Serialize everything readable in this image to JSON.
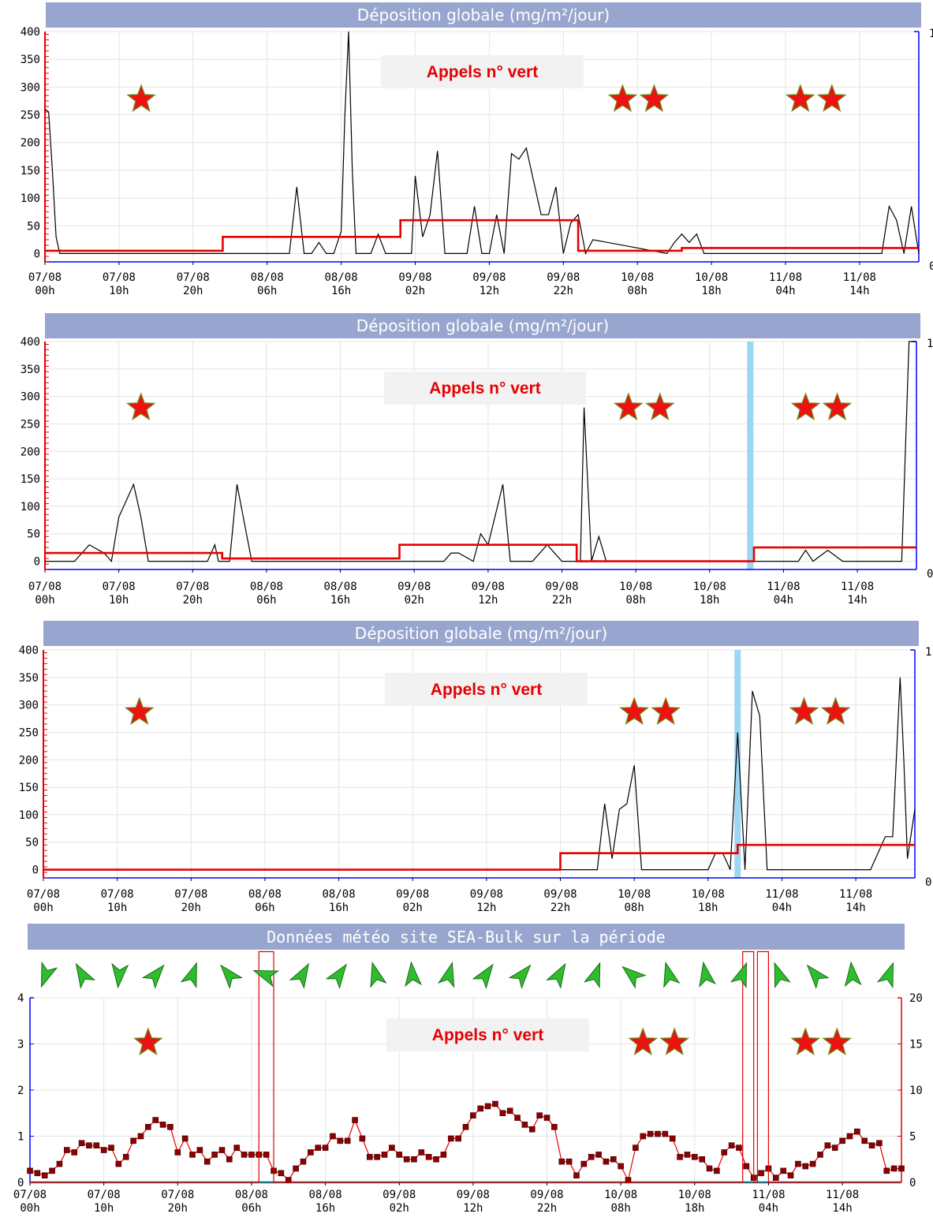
{
  "colors": {
    "header": "#98a6cf",
    "deposition_line": "#000000",
    "average_line": "#e60000",
    "highlight_band": "#9ad7f2",
    "left_axis": "#e60000",
    "right_axis": "#0000ff",
    "wind_arrow": "#2dbd2d",
    "star": "#ee1111"
  },
  "annotation": "Appels n° vert",
  "x_ticks": [
    {
      "date": "07/08",
      "hour": "00h"
    },
    {
      "date": "07/08",
      "hour": "10h"
    },
    {
      "date": "07/08",
      "hour": "20h"
    },
    {
      "date": "08/08",
      "hour": "06h"
    },
    {
      "date": "08/08",
      "hour": "16h"
    },
    {
      "date": "09/08",
      "hour": "02h"
    },
    {
      "date": "09/08",
      "hour": "12h"
    },
    {
      "date": "09/08",
      "hour": "22h"
    },
    {
      "date": "10/08",
      "hour": "08h"
    },
    {
      "date": "10/08",
      "hour": "18h"
    },
    {
      "date": "11/08",
      "hour": "04h"
    },
    {
      "date": "11/08",
      "hour": "14h"
    }
  ],
  "chart_data": [
    {
      "type": "line",
      "title": "Déposition globale (mg/m²/jour)",
      "x_unit": "hours since 07/08 00h",
      "xlim": [
        0,
        118
      ],
      "ylim": [
        -15,
        400
      ],
      "y_ticks": [
        0,
        50,
        100,
        150,
        200,
        250,
        300,
        350,
        400
      ],
      "right_axis_tick": "1",
      "stars": [
        {
          "x": 13,
          "count": 1
        },
        {
          "x": 78,
          "count": 2
        },
        {
          "x": 102,
          "count": 2
        }
      ],
      "series": [
        {
          "x": [
            0,
            0.5,
            1,
            1.5,
            2,
            2.5,
            33,
            34,
            35,
            36,
            37,
            38,
            39,
            40,
            40.5,
            41,
            41.5,
            42,
            44,
            45,
            46,
            47,
            48,
            49,
            49.5,
            50,
            51,
            52,
            53,
            54,
            55,
            56,
            57,
            58,
            59,
            60,
            61,
            62,
            63,
            64,
            65,
            66,
            67,
            68,
            69,
            70,
            71,
            72,
            73,
            74,
            84,
            85,
            86,
            87,
            88,
            89,
            93,
            94,
            95,
            96,
            97,
            98,
            99,
            100,
            101,
            102,
            103,
            104,
            105,
            106,
            107,
            108,
            109,
            110,
            111,
            112,
            113,
            114,
            115,
            116,
            117,
            118
          ],
          "y": [
            260,
            255,
            150,
            30,
            0,
            0,
            0,
            120,
            0,
            0,
            20,
            0,
            0,
            40,
            250,
            400,
            150,
            0,
            0,
            35,
            0,
            0,
            0,
            0,
            0,
            140,
            30,
            70,
            185,
            0,
            0,
            0,
            0,
            85,
            0,
            0,
            70,
            0,
            180,
            170,
            190,
            130,
            70,
            70,
            120,
            0,
            55,
            70,
            0,
            25,
            0,
            20,
            35,
            20,
            35,
            0,
            0,
            0,
            0,
            0,
            0,
            0,
            0,
            0,
            0,
            0,
            0,
            0,
            0,
            0,
            0,
            0,
            0,
            0,
            0,
            0,
            0,
            85,
            60,
            0,
            85,
            0
          ]
        },
        {
          "name": "avg",
          "x": [
            0,
            24,
            24,
            48,
            48,
            72,
            72,
            86,
            86,
            118
          ],
          "y": [
            5,
            5,
            30,
            30,
            60,
            60,
            5,
            5,
            10,
            10
          ]
        }
      ]
    },
    {
      "type": "line",
      "title": "Déposition globale (mg/m²/jour)",
      "x_unit": "hours since 07/08 00h",
      "xlim": [
        0,
        118
      ],
      "ylim": [
        -15,
        400
      ],
      "y_ticks": [
        0,
        50,
        100,
        150,
        200,
        250,
        300,
        350,
        400
      ],
      "right_axis_tick": "1",
      "highlight_x": [
        95.5
      ],
      "stars": [
        {
          "x": 13,
          "count": 1
        },
        {
          "x": 79,
          "count": 2
        },
        {
          "x": 103,
          "count": 2
        }
      ],
      "series": [
        {
          "x": [
            0,
            4,
            6,
            8,
            9,
            10,
            12,
            13,
            14,
            16,
            18,
            20,
            21,
            22,
            23,
            23.5,
            24,
            25,
            26,
            28,
            30,
            32,
            34,
            36,
            38,
            40,
            42,
            44,
            46,
            48,
            50,
            52,
            54,
            55,
            56,
            58,
            59,
            60,
            62,
            63,
            64,
            66,
            68,
            70,
            71,
            71.5,
            72,
            72.5,
            73,
            74,
            75,
            76,
            78,
            80,
            82,
            84,
            86,
            88,
            90,
            92,
            94,
            96,
            98,
            100,
            102,
            103,
            104,
            106,
            108,
            110,
            112,
            114,
            116,
            117,
            118
          ],
          "y": [
            0,
            0,
            30,
            15,
            0,
            80,
            140,
            80,
            0,
            0,
            0,
            0,
            0,
            0,
            30,
            0,
            0,
            0,
            140,
            0,
            0,
            0,
            0,
            0,
            0,
            0,
            0,
            0,
            0,
            0,
            0,
            0,
            0,
            15,
            15,
            0,
            50,
            30,
            140,
            0,
            0,
            0,
            30,
            0,
            0,
            0,
            0,
            0,
            280,
            0,
            45,
            0,
            0,
            0,
            0,
            0,
            0,
            0,
            0,
            0,
            0,
            0,
            0,
            0,
            0,
            20,
            0,
            20,
            0,
            0,
            0,
            0,
            0,
            400,
            400
          ]
        },
        {
          "name": "avg",
          "x": [
            0,
            24,
            24,
            48,
            48,
            72,
            72,
            96,
            96,
            118
          ],
          "y": [
            15,
            15,
            5,
            5,
            30,
            30,
            0,
            0,
            25,
            25
          ]
        }
      ]
    },
    {
      "type": "line",
      "title": "Déposition globale (mg/m²/jour)",
      "x_unit": "hours since 07/08 00h",
      "xlim": [
        0,
        118
      ],
      "ylim": [
        -15,
        400
      ],
      "y_ticks": [
        0,
        50,
        100,
        150,
        200,
        250,
        300,
        350,
        400
      ],
      "right_axis_tick": "1",
      "highlight_x": [
        94
      ],
      "stars": [
        {
          "x": 13,
          "count": 1
        },
        {
          "x": 80,
          "count": 2
        },
        {
          "x": 103,
          "count": 2
        }
      ],
      "series": [
        {
          "x": [
            0,
            71,
            72,
            74,
            75,
            76,
            77,
            78,
            79,
            80,
            81,
            82,
            83,
            84,
            85,
            86,
            88,
            90,
            91,
            92,
            93,
            94,
            95,
            96,
            97,
            98,
            99,
            100,
            102,
            104,
            106,
            108,
            110,
            112,
            114,
            115,
            116,
            116.5,
            117,
            118
          ],
          "y": [
            0,
            0,
            0,
            0,
            0,
            120,
            20,
            110,
            120,
            190,
            0,
            0,
            0,
            0,
            0,
            0,
            0,
            0,
            30,
            30,
            0,
            250,
            0,
            325,
            280,
            0,
            0,
            0,
            0,
            0,
            0,
            0,
            0,
            0,
            60,
            60,
            350,
            200,
            20,
            110
          ]
        },
        {
          "name": "avg",
          "x": [
            0,
            70,
            70,
            94,
            94,
            118
          ],
          "y": [
            0,
            0,
            30,
            30,
            45,
            45
          ]
        }
      ]
    },
    {
      "type": "line",
      "title": "Données météo site SEA-Bulk sur la période",
      "x_unit": "hours since 07/08 00h",
      "xlim": [
        0,
        118
      ],
      "ylim": [
        0,
        4
      ],
      "y_ticks": [
        0,
        1,
        2,
        3,
        4
      ],
      "y2lim": [
        0,
        20
      ],
      "y2_ticks": [
        0,
        5,
        10,
        15,
        20
      ],
      "stars": [
        {
          "x": 16,
          "count": 1
        },
        {
          "x": 83,
          "count": 2
        },
        {
          "x": 105,
          "count": 2
        }
      ],
      "wind_directions_deg": [
        200,
        330,
        185,
        40,
        20,
        320,
        290,
        30,
        35,
        345,
        355,
        15,
        35,
        40,
        30,
        20,
        310,
        345,
        350,
        20,
        340,
        320,
        355,
        20
      ],
      "series": [
        {
          "name": "wind_speed",
          "x": [
            0,
            1,
            2,
            3,
            4,
            5,
            6,
            7,
            8,
            9,
            10,
            11,
            12,
            13,
            14,
            15,
            16,
            17,
            18,
            19,
            20,
            21,
            22,
            23,
            24,
            25,
            26,
            27,
            28,
            29,
            30,
            31,
            32,
            33,
            34,
            35,
            36,
            37,
            38,
            39,
            40,
            41,
            42,
            43,
            44,
            45,
            46,
            47,
            48,
            49,
            50,
            51,
            52,
            53,
            54,
            55,
            56,
            57,
            58,
            59,
            60,
            61,
            62,
            63,
            64,
            65,
            66,
            67,
            68,
            69,
            70,
            71,
            72,
            73,
            74,
            75,
            76,
            77,
            78,
            79,
            80,
            81,
            82,
            83,
            84,
            85,
            86,
            87,
            88,
            89,
            90,
            91,
            92,
            93,
            94,
            95,
            96,
            97,
            98,
            99,
            100,
            101,
            102,
            103,
            104,
            105,
            106,
            107,
            108,
            109,
            110,
            111,
            112,
            113,
            114,
            115,
            116,
            117,
            118
          ],
          "y": [
            0.25,
            0.2,
            0.15,
            0.25,
            0.4,
            0.7,
            0.65,
            0.85,
            0.8,
            0.8,
            0.7,
            0.75,
            0.4,
            0.55,
            0.9,
            1.0,
            1.2,
            1.35,
            1.25,
            1.2,
            0.65,
            0.95,
            0.6,
            0.7,
            0.45,
            0.6,
            0.7,
            0.5,
            0.75,
            0.6,
            0.6,
            0.6,
            0.6,
            0.25,
            0.2,
            0.05,
            0.3,
            0.45,
            0.65,
            0.75,
            0.75,
            1.0,
            0.9,
            0.9,
            1.35,
            0.95,
            0.55,
            0.55,
            0.6,
            0.75,
            0.6,
            0.5,
            0.5,
            0.65,
            0.55,
            0.5,
            0.6,
            0.95,
            0.95,
            1.2,
            1.45,
            1.6,
            1.65,
            1.7,
            1.5,
            1.55,
            1.4,
            1.25,
            1.15,
            1.45,
            1.4,
            1.2,
            0.45,
            0.45,
            0.15,
            0.4,
            0.55,
            0.6,
            0.45,
            0.5,
            0.35,
            0.05,
            0.75,
            1.0,
            1.05,
            1.05,
            1.05,
            0.95,
            0.55,
            0.6,
            0.55,
            0.5,
            0.3,
            0.25,
            0.65,
            0.8,
            0.75,
            0.35,
            0.1,
            0.2,
            0.3,
            0.1,
            0.25,
            0.15,
            0.4,
            0.35,
            0.4,
            0.6,
            0.8,
            0.75,
            0.9,
            1.0,
            1.1,
            0.9,
            0.8,
            0.85,
            0.25,
            0.3,
            0.3
          ]
        },
        {
          "name": "rain",
          "axis": "right",
          "x": [
            0,
            30.5,
            31,
            31,
            33,
            33,
            34,
            96,
            96.5,
            96.5,
            98,
            98,
            98.5,
            98.5,
            100,
            100,
            100.5,
            118
          ],
          "y": [
            0,
            0,
            0,
            25,
            25,
            0,
            0,
            0,
            0,
            25,
            25,
            0,
            0,
            25,
            25,
            0,
            0,
            0
          ]
        }
      ]
    }
  ]
}
